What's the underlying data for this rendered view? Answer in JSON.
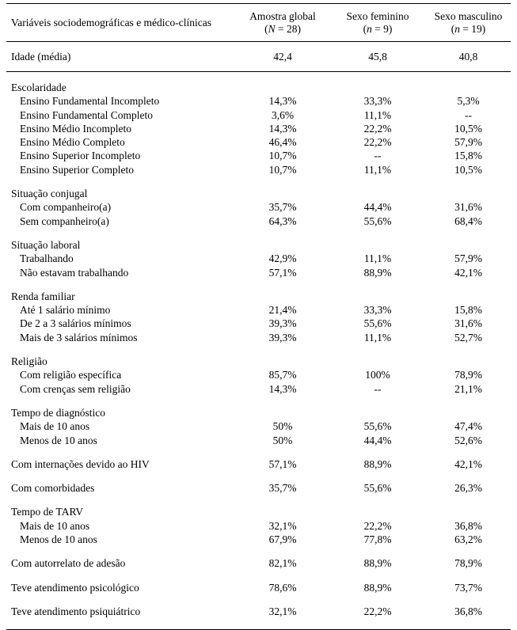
{
  "table": {
    "header": {
      "label": "Variáveis sociodemográficas e médico-clínicas",
      "columns": [
        {
          "title": "Amostra global",
          "count_pre": "(",
          "count_var": "N",
          "count_post": " = 28)"
        },
        {
          "title": "Sexo feminino",
          "count_pre": "(",
          "count_var": "n",
          "count_post": " = 9)"
        },
        {
          "title": "Sexo masculino",
          "count_pre": "(",
          "count_var": "n",
          "count_post": " = 19)"
        }
      ]
    },
    "age_row": {
      "label": "Idade (média)",
      "values": [
        "42,4",
        "45,8",
        "40,8"
      ]
    },
    "sections": [
      {
        "title": "Escolaridade",
        "rows": [
          {
            "label": "Ensino Fundamental Incompleto",
            "indent": true,
            "values": [
              "14,3%",
              "33,3%",
              "5,3%"
            ]
          },
          {
            "label": "Ensino Fundamental Completo",
            "indent": true,
            "values": [
              "3,6%",
              "11,1%",
              "--"
            ]
          },
          {
            "label": "Ensino Médio Incompleto",
            "indent": true,
            "values": [
              "14,3%",
              "22,2%",
              "10,5%"
            ]
          },
          {
            "label": "Ensino Médio Completo",
            "indent": true,
            "values": [
              "46,4%",
              "22,2%",
              "57,9%"
            ]
          },
          {
            "label": "Ensino Superior Incompleto",
            "indent": true,
            "values": [
              "10,7%",
              "--",
              "15,8%"
            ]
          },
          {
            "label": "Ensino Superior Completo",
            "indent": true,
            "values": [
              "10,7%",
              "11,1%",
              "10,5%"
            ]
          }
        ]
      },
      {
        "title": "Situação conjugal",
        "rows": [
          {
            "label": "Com companheiro(a)",
            "indent": true,
            "values": [
              "35,7%",
              "44,4%",
              "31,6%"
            ]
          },
          {
            "label": "Sem companheiro(a)",
            "indent": true,
            "values": [
              "64,3%",
              "55,6%",
              "68,4%"
            ]
          }
        ]
      },
      {
        "title": "Situação laboral",
        "rows": [
          {
            "label": "Trabalhando",
            "indent": true,
            "values": [
              "42,9%",
              "11,1%",
              "57,9%"
            ]
          },
          {
            "label": "Não estavam trabalhando",
            "indent": true,
            "values": [
              "57,1%",
              "88,9%",
              "42,1%"
            ]
          }
        ]
      },
      {
        "title": "Renda familiar",
        "rows": [
          {
            "label": "Até 1 salário mínimo",
            "indent": true,
            "values": [
              "21,4%",
              "33,3%",
              "15,8%"
            ]
          },
          {
            "label": "De 2 a 3 salários mínimos",
            "indent": true,
            "values": [
              "39,3%",
              "55,6%",
              "31,6%"
            ]
          },
          {
            "label": "Mais de 3 salários mínimos",
            "indent": true,
            "values": [
              "39,3%",
              "11,1%",
              "52,7%"
            ]
          }
        ]
      },
      {
        "title": "Religião",
        "rows": [
          {
            "label": "Com religião específica",
            "indent": true,
            "values": [
              "85,7%",
              "100%",
              "78,9%"
            ]
          },
          {
            "label": "Com crenças sem religião",
            "indent": true,
            "values": [
              "14,3%",
              "--",
              "21,1%"
            ]
          }
        ]
      },
      {
        "title": "Tempo de diagnóstico",
        "rows": [
          {
            "label": "Mais de 10 anos",
            "indent": true,
            "values": [
              "50%",
              "55,6%",
              "47,4%"
            ]
          },
          {
            "label": "Menos de 10 anos",
            "indent": true,
            "values": [
              "50%",
              "44,4%",
              "52,6%"
            ]
          }
        ]
      },
      {
        "title": "",
        "rows": [
          {
            "label": "Com internações devido ao HIV",
            "indent": false,
            "values": [
              "57,1%",
              "88,9%",
              "42,1%"
            ]
          }
        ]
      },
      {
        "title": "",
        "rows": [
          {
            "label": "Com comorbidades",
            "indent": false,
            "values": [
              "35,7%",
              "55,6%",
              "26,3%"
            ]
          }
        ]
      },
      {
        "title": "Tempo de TARV",
        "rows": [
          {
            "label": "Mais de 10 anos",
            "indent": true,
            "values": [
              "32,1%",
              "22,2%",
              "36,8%"
            ]
          },
          {
            "label": "Menos de 10 anos",
            "indent": true,
            "values": [
              "67,9%",
              "77,8%",
              "63,2%"
            ]
          }
        ]
      },
      {
        "title": "",
        "rows": [
          {
            "label": "Com autorrelato de adesão",
            "indent": false,
            "values": [
              "82,1%",
              "88,9%",
              "78,9%"
            ]
          }
        ]
      },
      {
        "title": "",
        "rows": [
          {
            "label": "Teve atendimento psicológico",
            "indent": false,
            "values": [
              "78,6%",
              "88,9%",
              "73,7%"
            ]
          }
        ]
      },
      {
        "title": "",
        "rows": [
          {
            "label": "Teve atendimento psiquiátrico",
            "indent": false,
            "values": [
              "32,1%",
              "22,2%",
              "36,8%"
            ]
          }
        ]
      }
    ]
  }
}
